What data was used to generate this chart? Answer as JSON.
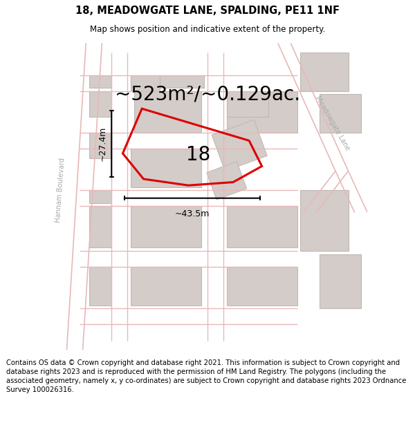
{
  "title": "18, MEADOWGATE LANE, SPALDING, PE11 1NF",
  "subtitle": "Map shows position and indicative extent of the property.",
  "area_text": "~523m²/~0.129ac.",
  "label_18": "18",
  "dim_vertical": "~27.4m",
  "dim_horizontal": "~43.5m",
  "footnote": "Contains OS data © Crown copyright and database right 2021. This information is subject to Crown copyright and database rights 2023 and is reproduced with the permission of HM Land Registry. The polygons (including the associated geometry, namely x, y co-ordinates) are subject to Crown copyright and database rights 2023 Ordnance Survey 100026316.",
  "bg_color": "#ffffff",
  "map_bg": "#f7f4f2",
  "road_line_color": "#e8b8b8",
  "building_fill": "#d4ccc8",
  "building_edge": "#c0b8b4",
  "red_color": "#dd0000",
  "title_fontsize": 10.5,
  "subtitle_fontsize": 8.5,
  "area_fontsize": 20,
  "label_fontsize": 20,
  "dim_fontsize": 9,
  "footnote_fontsize": 7.2,
  "road_label_color": "#aaaaaa",
  "road_label_fontsize": 7
}
